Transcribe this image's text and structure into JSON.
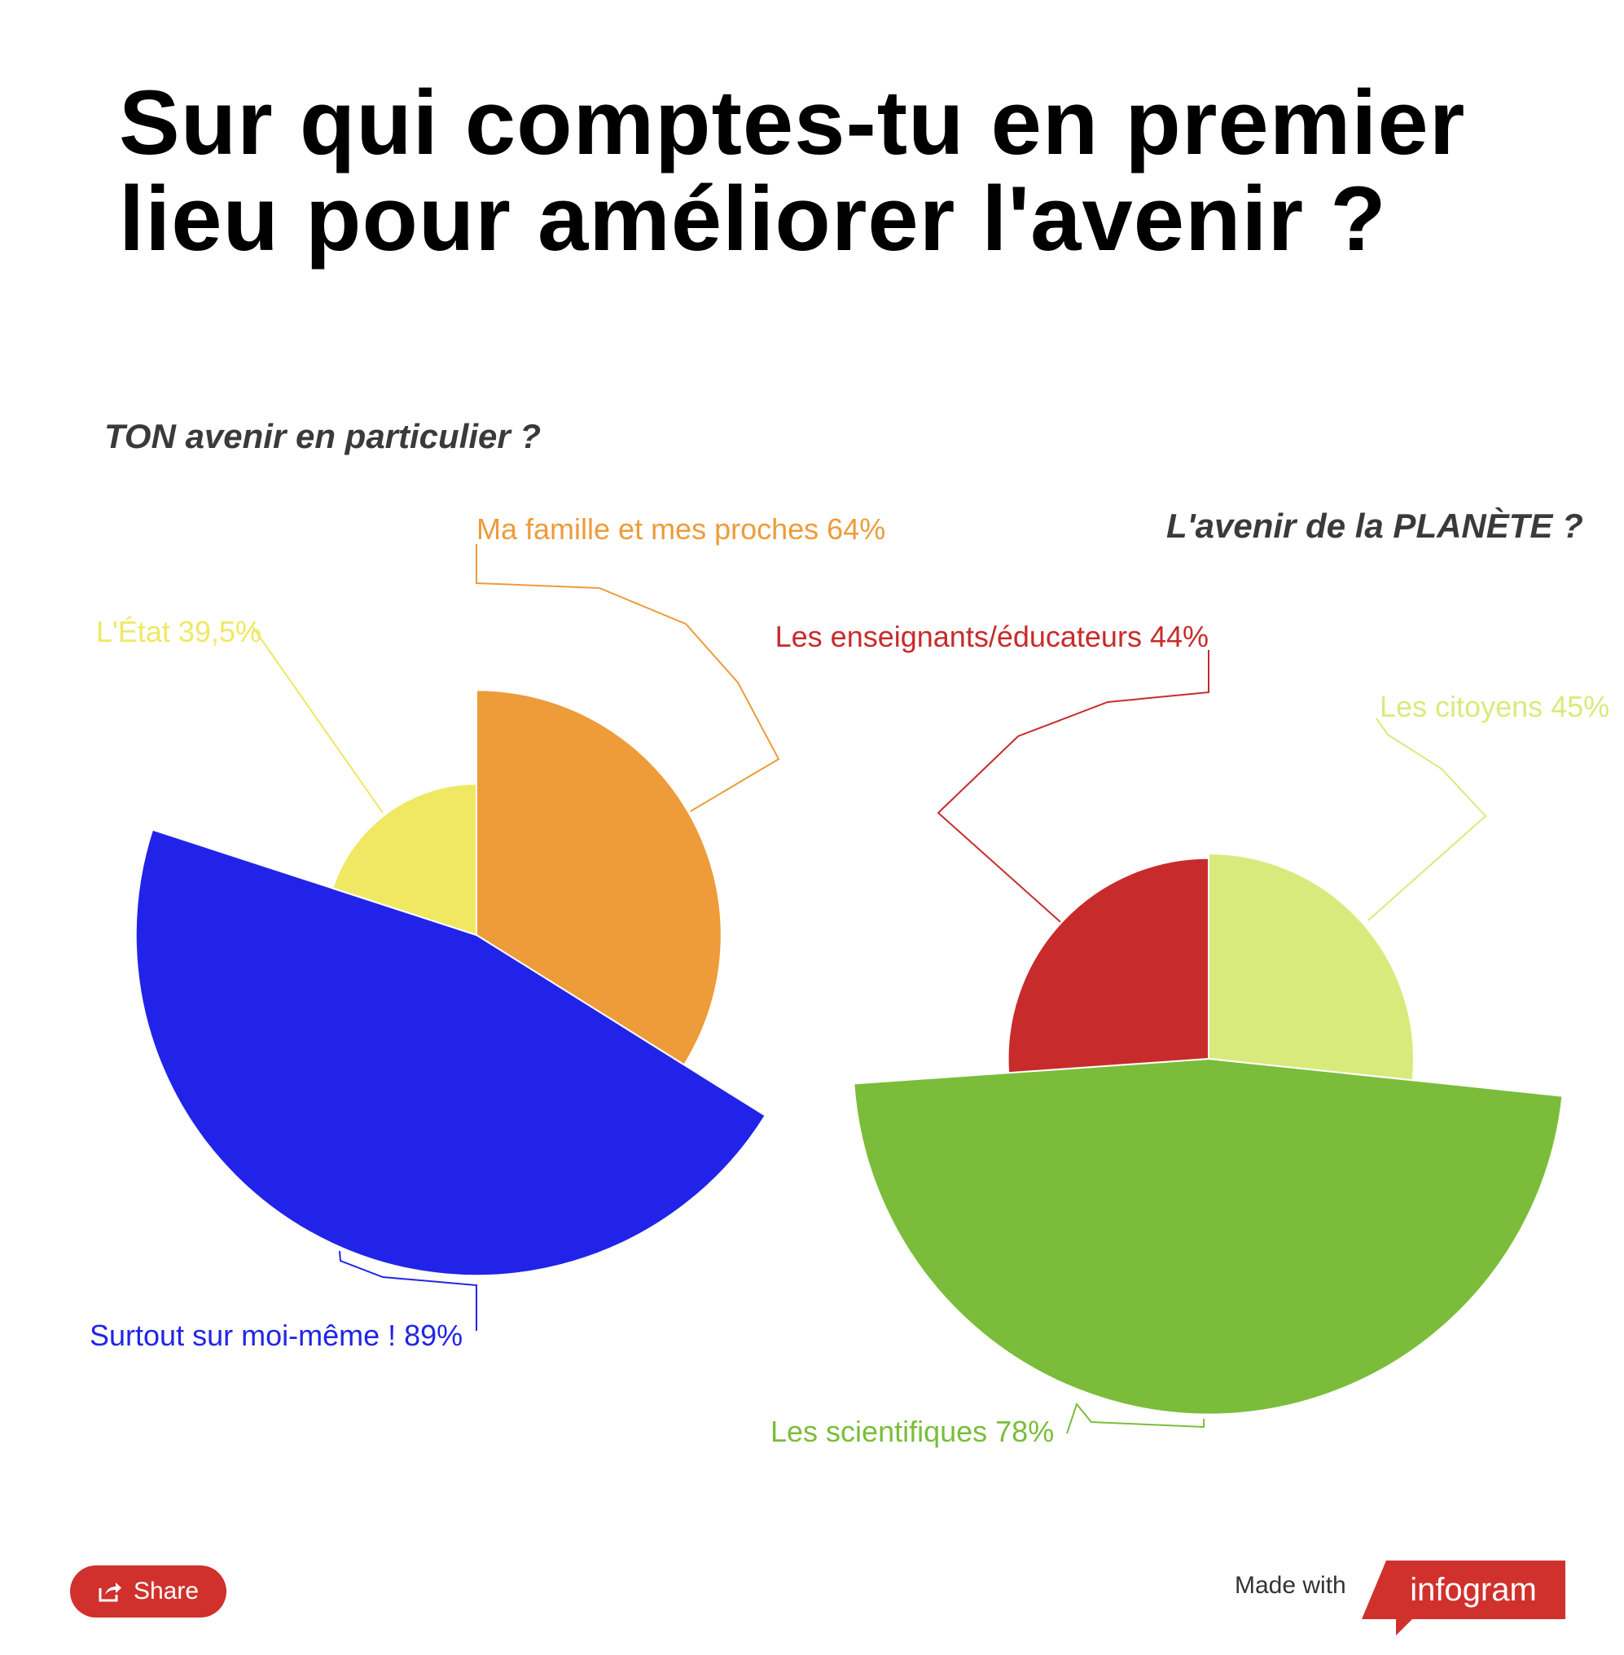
{
  "title": "Sur qui comptes-tu en premier lieu pour améliorer l'avenir ?",
  "chart_data": [
    {
      "type": "pie",
      "variant": "nightingale-rose",
      "title": "TON avenir en particulier ?",
      "series": [
        {
          "name": "Ma famille et mes proches",
          "label": "Ma famille et mes proches 64%",
          "value": 64,
          "color": "#ee9b3a"
        },
        {
          "name": "Surtout sur moi-même !",
          "label": "Surtout sur moi-même ! 89%",
          "value": 89,
          "color": "#2124e8"
        },
        {
          "name": "L'État",
          "label": "L'État 39,5%",
          "value": 39.5,
          "color": "#f0e862"
        }
      ]
    },
    {
      "type": "pie",
      "variant": "nightingale-rose",
      "title": "L'avenir de la PLANÈTE ?",
      "series": [
        {
          "name": "Les citoyens",
          "label": "Les citoyens 45%",
          "value": 45,
          "color": "#d9ea7c"
        },
        {
          "name": "Les scientifiques",
          "label": "Les scientifiques 78%",
          "value": 78,
          "color": "#7bbd3a"
        },
        {
          "name": "Les enseignants/éducateurs",
          "label": "Les enseignants/éducateurs 44%",
          "value": 44,
          "color": "#c82b2b"
        }
      ]
    }
  ],
  "footer": {
    "share_label": "Share",
    "made_with": "Made with",
    "brand": "infogram"
  }
}
